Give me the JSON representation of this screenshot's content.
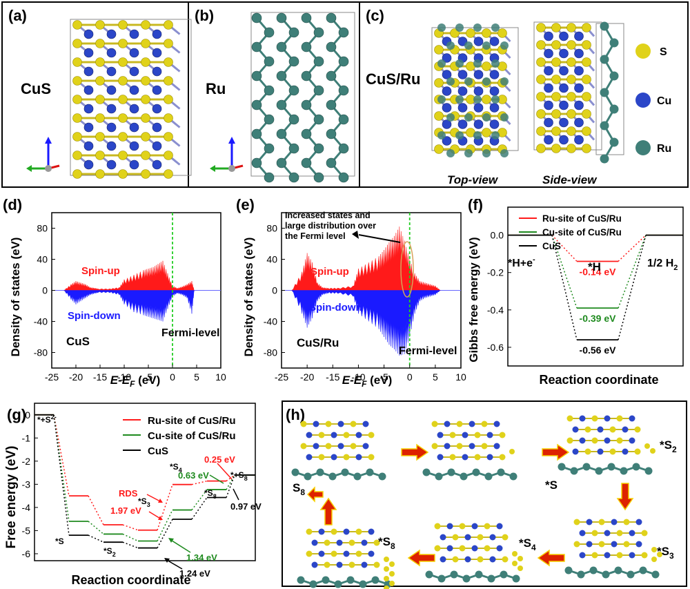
{
  "panels": {
    "a": {
      "label": "(a)",
      "material": "CuS"
    },
    "b": {
      "label": "(b)",
      "material": "Ru"
    },
    "c": {
      "label": "(c)",
      "material": "CuS/Ru",
      "top_view": "Top-view",
      "side_view": "Side-view",
      "legend": [
        {
          "name": "S",
          "color": "#e0d21a"
        },
        {
          "name": "Cu",
          "color": "#2b46c8"
        },
        {
          "name": "Ru",
          "color": "#3f7f78"
        }
      ]
    },
    "d": {
      "label": "(d)",
      "material": "CuS",
      "spin_up": "Spin-up",
      "spin_down": "Spin-down",
      "fermi": "Fermi-level",
      "ylabel": "Density of states (eV)",
      "xlabel_pre": "E-E",
      "xlabel_sub": "F",
      "xlabel_post": " (eV)"
    },
    "e": {
      "label": "(e)",
      "material": "CuS/Ru",
      "spin_up": "Spin-up",
      "spin_down": "Spin-down",
      "fermi": "Fermi-level",
      "annotation_line1": "Increased states and",
      "annotation_line2": "large distribution over",
      "annotation_line3": "the Fermi level",
      "ylabel": "Density of states (eV)",
      "xlabel_pre": "E-E",
      "xlabel_sub": "F",
      "xlabel_post": " (eV)"
    },
    "f": {
      "label": "(f)",
      "ylabel": "Gibbs free energy (eV)",
      "xlabel": "Reaction coordinate",
      "state_left": "*H+e",
      "state_left_sup": "-",
      "state_mid": "*H",
      "state_right": "1/2 H",
      "state_right_sub": "2"
    },
    "g": {
      "label": "(g)",
      "ylabel": "Free energy (eV)",
      "xlabel": "Reaction coordinate",
      "rds": "RDS"
    },
    "h": {
      "label": "(h)",
      "steps": [
        "*S",
        "*S2",
        "*S3",
        "*S4",
        "*S8",
        "S8"
      ]
    }
  },
  "colors": {
    "red": "#ff1a1a",
    "green": "#1e8a1e",
    "black": "#000000",
    "blue": "#1a1aff",
    "fermi": "#22cc22"
  },
  "chart_data": [
    {
      "type": "area",
      "title": "CuS",
      "xlabel": "E-EF (eV)",
      "ylabel": "Density of states (eV)",
      "xlim": [
        -25,
        10
      ],
      "ylim": [
        -100,
        100
      ],
      "xticks": [
        -25,
        -20,
        -15,
        -10,
        -5,
        0,
        5,
        10
      ],
      "yticks": [
        80,
        40,
        0,
        -40,
        -80
      ],
      "series": [
        {
          "name": "Spin-up",
          "x": [
            -22.5,
            -21,
            -20,
            -19,
            -18,
            -17,
            -16,
            -15.5,
            -13,
            -11,
            -10,
            -8,
            -6,
            -5,
            -4,
            -3,
            -2,
            -1,
            0,
            1,
            2,
            3,
            4,
            4.5
          ],
          "values": [
            0,
            8,
            12,
            10,
            8,
            4,
            3,
            2,
            2,
            4,
            14,
            20,
            26,
            28,
            30,
            34,
            38,
            22,
            6,
            3,
            5,
            8,
            12,
            0
          ]
        },
        {
          "name": "Spin-down",
          "x": [
            -22.5,
            -21,
            -20,
            -19,
            -18,
            -17,
            -16,
            -15.5,
            -13,
            -11,
            -10,
            -8,
            -6,
            -5,
            -4,
            -3,
            -2,
            -1,
            0,
            1,
            2,
            3,
            4,
            4.5
          ],
          "values": [
            0,
            -12,
            -18,
            -14,
            -10,
            -6,
            -4,
            -3,
            -3,
            -6,
            -18,
            -28,
            -32,
            -34,
            -36,
            -38,
            -40,
            -24,
            -8,
            -4,
            -6,
            -10,
            -30,
            0
          ]
        }
      ],
      "annotations": [
        "Spin-up",
        "Spin-down",
        "Fermi-level"
      ]
    },
    {
      "type": "area",
      "title": "CuS/Ru",
      "xlabel": "E-EF (eV)",
      "ylabel": "Density of states (eV)",
      "xlim": [
        -25,
        10
      ],
      "ylim": [
        -100,
        100
      ],
      "xticks": [
        -25,
        -20,
        -15,
        -10,
        -5,
        0,
        5,
        10
      ],
      "yticks": [
        80,
        40,
        0,
        -40,
        -80
      ],
      "series": [
        {
          "name": "Spin-up",
          "x": [
            -23,
            -21,
            -20,
            -19,
            -18,
            -17,
            -16,
            -14,
            -11,
            -10,
            -8,
            -6,
            -5,
            -4,
            -3,
            -2,
            -1,
            0,
            1,
            2,
            3,
            4,
            5,
            6
          ],
          "values": [
            0,
            24,
            48,
            36,
            10,
            4,
            3,
            3,
            6,
            28,
            36,
            44,
            52,
            62,
            70,
            82,
            64,
            40,
            22,
            12,
            10,
            8,
            6,
            0
          ]
        },
        {
          "name": "Spin-down",
          "x": [
            -23,
            -21,
            -20,
            -19,
            -18,
            -17,
            -16,
            -14,
            -11,
            -10,
            -8,
            -6,
            -5,
            -4,
            -3,
            -2,
            -1,
            0,
            1,
            2,
            3,
            4,
            5,
            6
          ],
          "values": [
            0,
            -30,
            -48,
            -36,
            -14,
            -6,
            -4,
            -4,
            -8,
            -30,
            -40,
            -50,
            -60,
            -70,
            -76,
            -84,
            -82,
            -60,
            -30,
            -14,
            -10,
            -8,
            -6,
            0
          ]
        }
      ],
      "annotations": [
        "Spin-up",
        "Spin-down",
        "Fermi-level",
        "Increased states and large distribution over the Fermi level"
      ]
    },
    {
      "type": "line",
      "title": "",
      "xlabel": "Reaction coordinate",
      "ylabel": "Gibbs free energy (eV)",
      "ylim": [
        -0.7,
        0.15
      ],
      "yticks": [
        0.0,
        -0.2,
        -0.4,
        -0.6
      ],
      "categories": [
        "*H+e-",
        "*H",
        "1/2 H2"
      ],
      "series": [
        {
          "name": "Ru-site of CuS/Ru",
          "color": "#ff1a1a",
          "values": [
            0.0,
            -0.14,
            0.0
          ],
          "label": "-0.14 eV"
        },
        {
          "name": "Cu-site of CuS/Ru",
          "color": "#1e8a1e",
          "values": [
            0.0,
            -0.39,
            0.0
          ],
          "label": "-0.39 eV"
        },
        {
          "name": "CuS",
          "color": "#000000",
          "values": [
            0.0,
            -0.56,
            0.0
          ],
          "label": "-0.56 eV"
        }
      ]
    },
    {
      "type": "line",
      "title": "",
      "xlabel": "Reaction coordinate",
      "ylabel": "Free energy (eV)",
      "ylim": [
        -6.3,
        0.5
      ],
      "yticks": [
        0,
        -1,
        -2,
        -3,
        -4,
        -5,
        -6
      ],
      "categories": [
        "*+S2-",
        "*S",
        "*S2",
        "*S3",
        "*S4",
        "*S8",
        "*+S8"
      ],
      "series": [
        {
          "name": "Ru-site of CuS/Ru",
          "color": "#ff1a1a",
          "values": [
            0,
            -3.5,
            -4.75,
            -4.98,
            -3.01,
            -2.86,
            -2.6
          ]
        },
        {
          "name": "Cu-site of CuS/Ru",
          "color": "#1e8a1e",
          "values": [
            0,
            -4.6,
            -5.15,
            -5.45,
            -4.11,
            -3.23,
            -2.6
          ]
        },
        {
          "name": "CuS",
          "color": "#000000",
          "values": [
            0,
            -5.2,
            -5.5,
            -5.75,
            -4.51,
            -3.57,
            -2.6
          ]
        }
      ],
      "annotations": [
        "RDS",
        "1.97 eV",
        "0.63 eV",
        "0.25 eV",
        "1.34 eV",
        "1.24 eV",
        "0.97 eV"
      ]
    }
  ],
  "g_labels": {
    "start": "*+S",
    "start_sup": "2-",
    "s": "*S",
    "s2": "*S",
    "s2_sub": "2",
    "s3": "*S",
    "s3_sub": "3",
    "s4": "*S",
    "s4_sub": "4",
    "s8": "*S",
    "s8_sub": "8",
    "end": "*+S",
    "end_sub": "8",
    "v_197": "1.97 eV",
    "v_063": "0.63 eV",
    "v_025": "0.25 eV",
    "v_134": "1.34 eV",
    "v_124": "1.24 eV",
    "v_097": "0.97 eV"
  },
  "legend_fg": [
    "Ru-site of CuS/Ru",
    "Cu-site of CuS/Ru",
    "CuS"
  ],
  "h_labels": {
    "s": "*S",
    "s2": "*S",
    "s2_sub": "2",
    "s3": "*S",
    "s3_sub": "3",
    "s4": "*S",
    "s4_sub": "4",
    "s8": "*S",
    "s8_sub": "8",
    "free_s8": "S",
    "free_s8_sub": "8"
  }
}
